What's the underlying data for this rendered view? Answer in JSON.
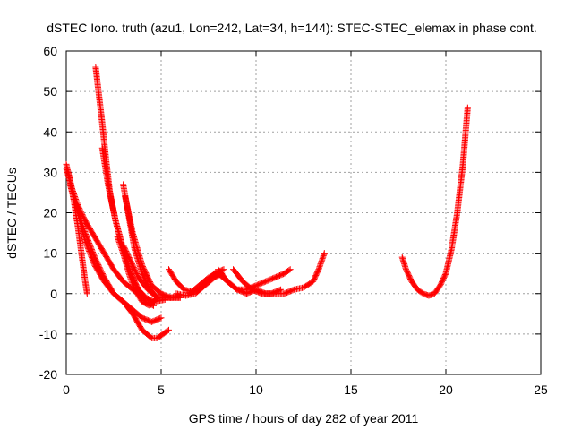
{
  "chart_data": {
    "type": "scatter",
    "title": "dSTEC Iono. truth (azu1, Lon=242, Lat=34, h=144): STEC-STEC_elemax in phase cont.",
    "xlabel": "GPS time / hours of day 282 of year 2011",
    "ylabel": "dSTEC  / TECUs",
    "xlim": [
      0,
      25
    ],
    "ylim": [
      -20,
      60
    ],
    "xticks": [
      0,
      5,
      10,
      15,
      20,
      25
    ],
    "yticks": [
      -20,
      -10,
      0,
      10,
      20,
      30,
      40,
      50,
      60
    ],
    "xtick_labels": [
      "0",
      "5",
      "10",
      "15",
      "20",
      "25"
    ],
    "ytick_labels": [
      "-20",
      "-10",
      "0",
      "10",
      "20",
      "30",
      "40",
      "50",
      "60"
    ],
    "grid": true,
    "marker": "+",
    "color": "#ff0000",
    "series": [
      {
        "points": [
          [
            0.0,
            32
          ],
          [
            0.2,
            28
          ],
          [
            0.4,
            23
          ],
          [
            0.6,
            17
          ],
          [
            0.8,
            10
          ],
          [
            1.0,
            3
          ],
          [
            1.1,
            0
          ]
        ]
      },
      {
        "points": [
          [
            0.0,
            31
          ],
          [
            0.3,
            26
          ],
          [
            0.6,
            22
          ],
          [
            1.0,
            18
          ],
          [
            1.5,
            14
          ],
          [
            2.0,
            10
          ],
          [
            2.5,
            6
          ],
          [
            3.0,
            3
          ],
          [
            3.5,
            1
          ],
          [
            4.0,
            0
          ]
        ]
      },
      {
        "points": [
          [
            0.1,
            30
          ],
          [
            0.5,
            22
          ],
          [
            1.0,
            15
          ],
          [
            1.5,
            9
          ],
          [
            2.0,
            4
          ],
          [
            2.5,
            0
          ],
          [
            3.0,
            -2
          ],
          [
            3.5,
            -5
          ],
          [
            4.0,
            -9
          ],
          [
            4.5,
            -11
          ],
          [
            4.8,
            -11
          ],
          [
            5.1,
            -10
          ],
          [
            5.4,
            -9
          ]
        ]
      },
      {
        "points": [
          [
            0.2,
            27
          ],
          [
            0.6,
            20
          ],
          [
            1.0,
            13
          ],
          [
            1.5,
            7
          ],
          [
            2.0,
            3
          ],
          [
            2.5,
            0
          ],
          [
            3.0,
            -2
          ],
          [
            3.5,
            -4
          ],
          [
            4.0,
            -6
          ],
          [
            4.5,
            -7
          ],
          [
            5.0,
            -6
          ]
        ]
      },
      {
        "points": [
          [
            1.55,
            56
          ],
          [
            1.7,
            50
          ],
          [
            1.9,
            42
          ],
          [
            2.1,
            33
          ],
          [
            2.3,
            25
          ],
          [
            2.6,
            18
          ],
          [
            3.0,
            11
          ],
          [
            3.4,
            5
          ],
          [
            3.8,
            1
          ],
          [
            4.2,
            -1
          ],
          [
            4.6,
            -2
          ],
          [
            5.2,
            -1.5
          ]
        ]
      },
      {
        "points": [
          [
            1.9,
            36
          ],
          [
            2.2,
            27
          ],
          [
            2.6,
            18
          ],
          [
            3.0,
            11
          ],
          [
            3.4,
            5
          ],
          [
            3.8,
            1
          ],
          [
            4.2,
            -2
          ],
          [
            4.6,
            -3
          ]
        ]
      },
      {
        "points": [
          [
            2.7,
            14
          ],
          [
            3.0,
            10
          ],
          [
            3.3,
            5
          ],
          [
            3.6,
            1
          ],
          [
            4.0,
            -2
          ],
          [
            4.4,
            -3
          ],
          [
            4.8,
            -1
          ]
        ]
      },
      {
        "points": [
          [
            3.0,
            27
          ],
          [
            3.3,
            19
          ],
          [
            3.6,
            11
          ],
          [
            4.0,
            5
          ],
          [
            4.4,
            1
          ],
          [
            4.8,
            -1
          ],
          [
            5.3,
            -1
          ],
          [
            6.0,
            -1
          ]
        ]
      },
      {
        "points": [
          [
            3.0,
            12
          ],
          [
            3.4,
            8
          ],
          [
            3.8,
            4
          ],
          [
            4.3,
            1
          ],
          [
            4.8,
            -1
          ],
          [
            5.5,
            -1
          ],
          [
            6.0,
            -1
          ]
        ]
      },
      {
        "points": [
          [
            3.1,
            24
          ],
          [
            3.5,
            15
          ],
          [
            4.0,
            7
          ],
          [
            4.5,
            2
          ],
          [
            5.0,
            0
          ],
          [
            5.5,
            -1
          ],
          [
            6.0,
            -0.5
          ]
        ]
      },
      {
        "points": [
          [
            5.4,
            6
          ],
          [
            5.8,
            3
          ],
          [
            6.2,
            1
          ],
          [
            6.6,
            0.5
          ],
          [
            7.0,
            1
          ],
          [
            7.4,
            3
          ],
          [
            7.8,
            5
          ],
          [
            8.3,
            6
          ]
        ]
      },
      {
        "points": [
          [
            5.8,
            0
          ],
          [
            6.3,
            -0.5
          ],
          [
            6.8,
            0
          ],
          [
            7.3,
            2
          ],
          [
            7.8,
            4
          ],
          [
            8.2,
            5
          ]
        ]
      },
      {
        "points": [
          [
            6.5,
            0
          ],
          [
            7.0,
            2
          ],
          [
            7.5,
            4
          ],
          [
            8.0,
            5
          ],
          [
            8.5,
            3
          ],
          [
            9.0,
            1
          ],
          [
            9.5,
            0
          ]
        ]
      },
      {
        "points": [
          [
            8.0,
            6
          ],
          [
            8.5,
            3
          ],
          [
            9.0,
            1
          ],
          [
            9.5,
            1
          ],
          [
            10.0,
            2
          ],
          [
            10.5,
            3
          ],
          [
            11.0,
            4
          ],
          [
            11.5,
            5
          ],
          [
            11.8,
            6
          ]
        ]
      },
      {
        "points": [
          [
            8.8,
            6
          ],
          [
            9.3,
            3
          ],
          [
            9.8,
            1
          ],
          [
            10.3,
            0
          ],
          [
            10.8,
            0
          ],
          [
            11.3,
            1
          ]
        ]
      },
      {
        "points": [
          [
            9.5,
            0
          ],
          [
            10.0,
            1
          ],
          [
            10.5,
            0
          ],
          [
            11.0,
            0
          ],
          [
            11.5,
            0
          ],
          [
            12.0,
            1
          ],
          [
            12.5,
            1.5
          ],
          [
            13.0,
            3
          ],
          [
            13.3,
            6
          ],
          [
            13.6,
            10
          ]
        ]
      },
      {
        "points": [
          [
            17.7,
            9
          ],
          [
            17.9,
            6
          ],
          [
            18.2,
            3
          ],
          [
            18.5,
            1
          ],
          [
            18.8,
            0
          ],
          [
            19.1,
            -0.5
          ],
          [
            19.4,
            0
          ],
          [
            19.7,
            2
          ],
          [
            20.0,
            5
          ],
          [
            20.3,
            11
          ],
          [
            20.6,
            20
          ],
          [
            20.9,
            32
          ],
          [
            21.15,
            46
          ]
        ]
      }
    ]
  }
}
